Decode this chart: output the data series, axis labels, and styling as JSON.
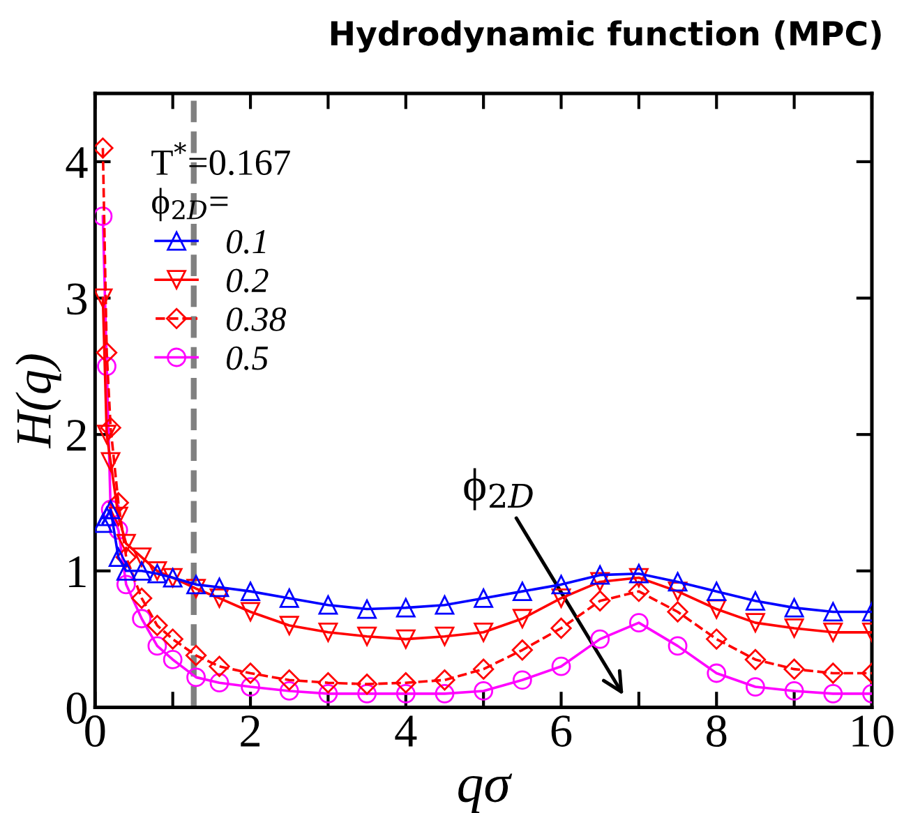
{
  "chart_data": {
    "type": "line",
    "title": "Hydrodynamic function (MPC)",
    "xlabel": "qσ",
    "ylabel": "H(q)",
    "legend_title": "T$^{*}$=0.167\nϕ$_{2D}$=",
    "xlim": [
      0,
      10
    ],
    "ylim": [
      0,
      4.5
    ],
    "xticks": [
      0,
      {
        "value": 1,
        "label": null
      },
      2,
      {
        "value": 3,
        "label": null
      },
      4,
      {
        "value": 5,
        "label": null
      },
      6,
      {
        "value": 7,
        "label": null
      },
      8,
      {
        "value": 9,
        "label": null
      },
      10
    ],
    "yticks": [
      0,
      1,
      2,
      3,
      4
    ],
    "grid": false,
    "legend": "top left",
    "x": [
      0.1,
      0.15,
      0.2,
      0.3,
      0.4,
      0.6,
      0.8,
      1.0,
      1.3,
      1.6,
      2,
      2.5,
      3,
      3.5,
      4,
      4.5,
      5,
      5.5,
      6,
      6.5,
      7,
      7.5,
      8,
      8.5,
      9,
      9.5,
      10
    ],
    "series": [
      {
        "name": "0.1",
        "color": "#0000ff",
        "marker": "triangle",
        "line_style": "solid",
        "values": [
          1.35,
          1.4,
          1.45,
          1.1,
          1.0,
          1.0,
          0.98,
          0.95,
          0.9,
          0.88,
          0.85,
          0.8,
          0.75,
          0.72,
          0.73,
          0.75,
          0.8,
          0.85,
          0.9,
          0.97,
          0.98,
          0.92,
          0.85,
          0.78,
          0.73,
          0.7,
          0.7
        ]
      },
      {
        "name": "0.2",
        "color": "#ff0000",
        "marker": "triangle_down",
        "line_style": "solid",
        "values": [
          3.0,
          2.0,
          1.8,
          1.4,
          1.2,
          1.1,
          1.0,
          0.95,
          0.87,
          0.8,
          0.7,
          0.6,
          0.55,
          0.52,
          0.5,
          0.52,
          0.55,
          0.65,
          0.8,
          0.92,
          0.95,
          0.85,
          0.72,
          0.62,
          0.58,
          0.55,
          0.55
        ]
      },
      {
        "name": "0.38",
        "color": "#ff0000",
        "marker": "diamond",
        "line_style": "dashed",
        "values": [
          4.1,
          2.6,
          2.05,
          1.5,
          1.1,
          0.8,
          0.6,
          0.5,
          0.38,
          0.3,
          0.25,
          0.2,
          0.18,
          0.17,
          0.18,
          0.2,
          0.28,
          0.42,
          0.58,
          0.78,
          0.85,
          0.7,
          0.5,
          0.35,
          0.28,
          0.25,
          0.25
        ]
      },
      {
        "name": "0.5",
        "color": "#ff00ff",
        "marker": "circle",
        "line_style": "solid",
        "values": [
          3.6,
          2.5,
          1.45,
          1.3,
          0.9,
          0.65,
          0.45,
          0.35,
          0.22,
          0.18,
          0.15,
          0.12,
          0.1,
          0.1,
          0.1,
          0.1,
          0.12,
          0.2,
          0.3,
          0.5,
          0.62,
          0.45,
          0.25,
          0.15,
          0.12,
          0.1,
          0.1
        ]
      }
    ],
    "ref_lines": [
      {
        "axis": "x",
        "value": 1.27,
        "color": "#808080",
        "line_style": "dashed"
      }
    ],
    "annotations": [
      "ϕ$_{2D}$"
    ]
  }
}
